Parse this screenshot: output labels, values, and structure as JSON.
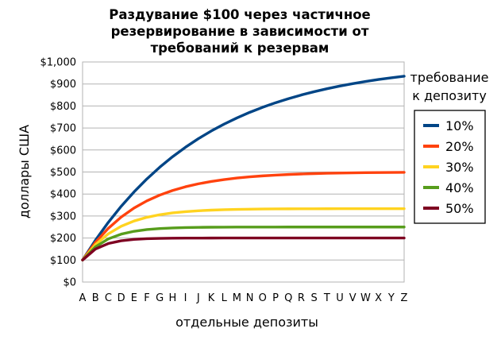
{
  "chart_data": {
    "type": "line",
    "title_lines": [
      "Раздувание $100 через частичное",
      "резервирование в  зависимости от",
      "требований к резервам"
    ],
    "xlabel": "отдельные депозиты",
    "ylabel": "доллары США",
    "categories": [
      "A",
      "B",
      "C",
      "D",
      "E",
      "F",
      "G",
      "H",
      "I",
      "J",
      "K",
      "L",
      "M",
      "N",
      "O",
      "P",
      "Q",
      "R",
      "S",
      "T",
      "U",
      "V",
      "W",
      "X",
      "Y",
      "Z"
    ],
    "yticks": [
      "$0",
      "$100",
      "$200",
      "$300",
      "$400",
      "$500",
      "$600",
      "$700",
      "$800",
      "$900",
      "$1,000"
    ],
    "ylim": [
      0,
      1000
    ],
    "grid": true,
    "legend_title_lines": [
      "требование",
      "к депозиту"
    ],
    "legend_position": "right",
    "series": [
      {
        "name": "10%",
        "color": "#004586",
        "reserve_ratio": 0.1
      },
      {
        "name": "20%",
        "color": "#ff420e",
        "reserve_ratio": 0.2
      },
      {
        "name": "30%",
        "color": "#ffd320",
        "reserve_ratio": 0.3
      },
      {
        "name": "40%",
        "color": "#579d1c",
        "reserve_ratio": 0.4
      },
      {
        "name": "50%",
        "color": "#7e0021",
        "reserve_ratio": 0.5
      }
    ]
  }
}
